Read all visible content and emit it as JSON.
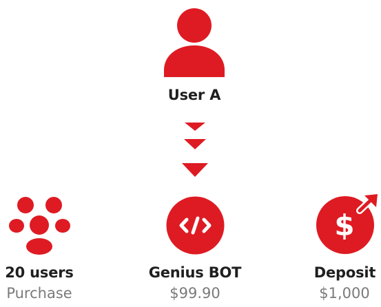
{
  "colors": {
    "accent": "#de1b23",
    "title_text": "#1f1f1f",
    "sub_text": "#7a7a7a"
  },
  "top_node": {
    "icon": "user-icon",
    "label": "User A"
  },
  "connector": {
    "icon": "triple-down-arrow-icon"
  },
  "nodes": [
    {
      "icon": "users-group-icon",
      "title": "20 users",
      "subtitle": "Purchase"
    },
    {
      "icon": "code-icon",
      "title": "Genius BOT",
      "subtitle": "$99.90"
    },
    {
      "icon": "dollar-growth-icon",
      "title": "Deposit",
      "subtitle": "$1,000"
    }
  ]
}
